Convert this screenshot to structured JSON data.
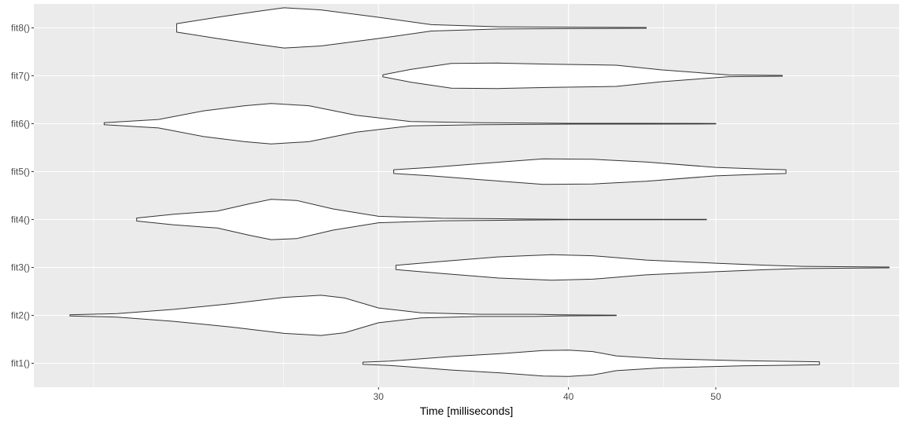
{
  "chart_data": {
    "type": "violin",
    "orientation": "horizontal",
    "xlabel": "Time [milliseconds]",
    "ylabel": "",
    "x_scale": "log",
    "xlim": [
      17.8,
      66
    ],
    "x_ticks": [
      30,
      40,
      50
    ],
    "background": "#ebebeb",
    "grid": true,
    "categories": [
      "fit1()",
      "fit2()",
      "fit3()",
      "fit4()",
      "fit5()",
      "fit6()",
      "fit7()",
      "fit8()"
    ],
    "series": [
      {
        "category": "fit1()",
        "profile": [
          [
            29.3,
            0.05
          ],
          [
            30.5,
            0.1
          ],
          [
            33.5,
            0.32
          ],
          [
            36,
            0.45
          ],
          [
            38.5,
            0.6
          ],
          [
            40,
            0.62
          ],
          [
            41.5,
            0.55
          ],
          [
            43,
            0.35
          ],
          [
            46,
            0.22
          ],
          [
            52,
            0.12
          ],
          [
            58.5,
            0.07
          ]
        ]
      },
      {
        "category": "fit2()",
        "profile": [
          [
            18.8,
            0.03
          ],
          [
            20.2,
            0.08
          ],
          [
            22,
            0.28
          ],
          [
            24,
            0.55
          ],
          [
            26,
            0.85
          ],
          [
            27.5,
            0.95
          ],
          [
            28.5,
            0.82
          ],
          [
            30,
            0.35
          ],
          [
            32,
            0.12
          ],
          [
            35,
            0.05
          ],
          [
            38,
            0.05
          ],
          [
            39.5,
            0.03
          ],
          [
            41,
            0.02
          ],
          [
            43,
            0.01
          ]
        ]
      },
      {
        "category": "fit3()",
        "profile": [
          [
            30.8,
            0.1
          ],
          [
            33,
            0.28
          ],
          [
            36,
            0.5
          ],
          [
            39,
            0.6
          ],
          [
            41.5,
            0.55
          ],
          [
            45,
            0.35
          ],
          [
            50,
            0.2
          ],
          [
            54,
            0.1
          ],
          [
            57,
            0.05
          ],
          [
            65,
            0.02
          ]
        ]
      },
      {
        "category": "fit4()",
        "profile": [
          [
            20.8,
            0.07
          ],
          [
            22,
            0.25
          ],
          [
            23.5,
            0.4
          ],
          [
            24.7,
            0.75
          ],
          [
            25.5,
            0.95
          ],
          [
            26.5,
            0.9
          ],
          [
            28,
            0.5
          ],
          [
            30,
            0.15
          ],
          [
            33,
            0.06
          ],
          [
            37,
            0.03
          ],
          [
            40,
            0.01
          ],
          [
            49.3,
            0.01
          ]
        ]
      },
      {
        "category": "fit5()",
        "profile": [
          [
            30.7,
            0.09
          ],
          [
            32.5,
            0.2
          ],
          [
            35,
            0.38
          ],
          [
            38.5,
            0.6
          ],
          [
            41.5,
            0.58
          ],
          [
            45,
            0.45
          ],
          [
            50,
            0.2
          ],
          [
            54,
            0.11
          ],
          [
            55.6,
            0.09
          ]
        ]
      },
      {
        "category": "fit6()",
        "profile": [
          [
            19.8,
            0.05
          ],
          [
            21.5,
            0.2
          ],
          [
            23,
            0.6
          ],
          [
            24.5,
            0.85
          ],
          [
            25.5,
            0.95
          ],
          [
            27,
            0.85
          ],
          [
            29,
            0.4
          ],
          [
            31.5,
            0.1
          ],
          [
            35,
            0.05
          ],
          [
            40,
            0.02
          ],
          [
            44,
            0.02
          ],
          [
            50,
            0.01
          ]
        ]
      },
      {
        "category": "fit7()",
        "profile": [
          [
            30.2,
            0.05
          ],
          [
            31.5,
            0.3
          ],
          [
            33.5,
            0.58
          ],
          [
            36,
            0.6
          ],
          [
            39,
            0.55
          ],
          [
            43,
            0.5
          ],
          [
            46,
            0.28
          ],
          [
            51,
            0.04
          ],
          [
            55.3,
            0.02
          ]
        ]
      },
      {
        "category": "fit8()",
        "profile": [
          [
            22.1,
            0.2
          ],
          [
            23.5,
            0.5
          ],
          [
            25,
            0.78
          ],
          [
            26,
            0.95
          ],
          [
            27.5,
            0.85
          ],
          [
            30,
            0.5
          ],
          [
            32.5,
            0.15
          ],
          [
            36,
            0.05
          ],
          [
            41.5,
            0.03
          ],
          [
            45,
            0.02
          ]
        ]
      }
    ]
  }
}
